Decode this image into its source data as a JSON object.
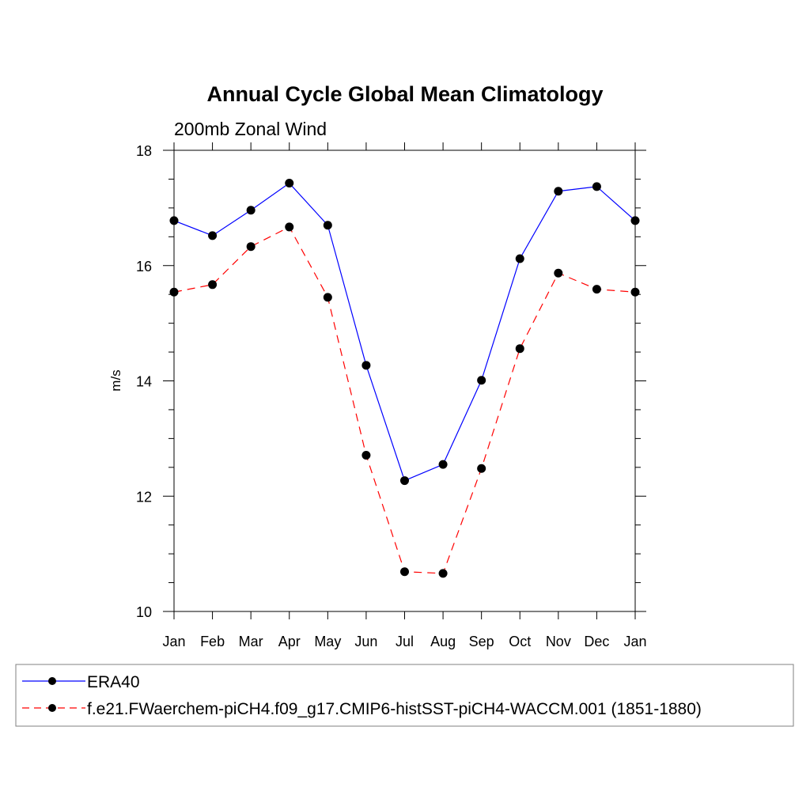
{
  "chart_data": {
    "type": "line",
    "title": "Annual Cycle Global Mean Climatology",
    "subtitle": "200mb Zonal Wind",
    "xlabel": "",
    "ylabel": "m/s",
    "ylim": [
      10,
      18
    ],
    "yticks": [
      10,
      12,
      14,
      16,
      18
    ],
    "categories": [
      "Jan",
      "Feb",
      "Mar",
      "Apr",
      "May",
      "Jun",
      "Jul",
      "Aug",
      "Sep",
      "Oct",
      "Nov",
      "Dec",
      "Jan"
    ],
    "grid": false,
    "legend_position": "bottom",
    "series": [
      {
        "name": "ERA40",
        "color": "#0000ff",
        "dashed": false,
        "marker": "filled-circle",
        "values": [
          16.78,
          16.52,
          16.96,
          17.43,
          16.7,
          14.27,
          12.27,
          12.55,
          14.01,
          16.12,
          17.29,
          17.37,
          16.78
        ]
      },
      {
        "name": "f.e21.FWaerchem-piCH4.f09_g17.CMIP6-histSST-piCH4-WACCM.001 (1851-1880)",
        "color": "#ff0000",
        "dashed": true,
        "marker": "filled-circle",
        "values": [
          15.54,
          15.67,
          16.33,
          16.67,
          15.45,
          12.71,
          10.69,
          10.66,
          12.48,
          14.56,
          15.87,
          15.59,
          15.54
        ]
      }
    ]
  }
}
